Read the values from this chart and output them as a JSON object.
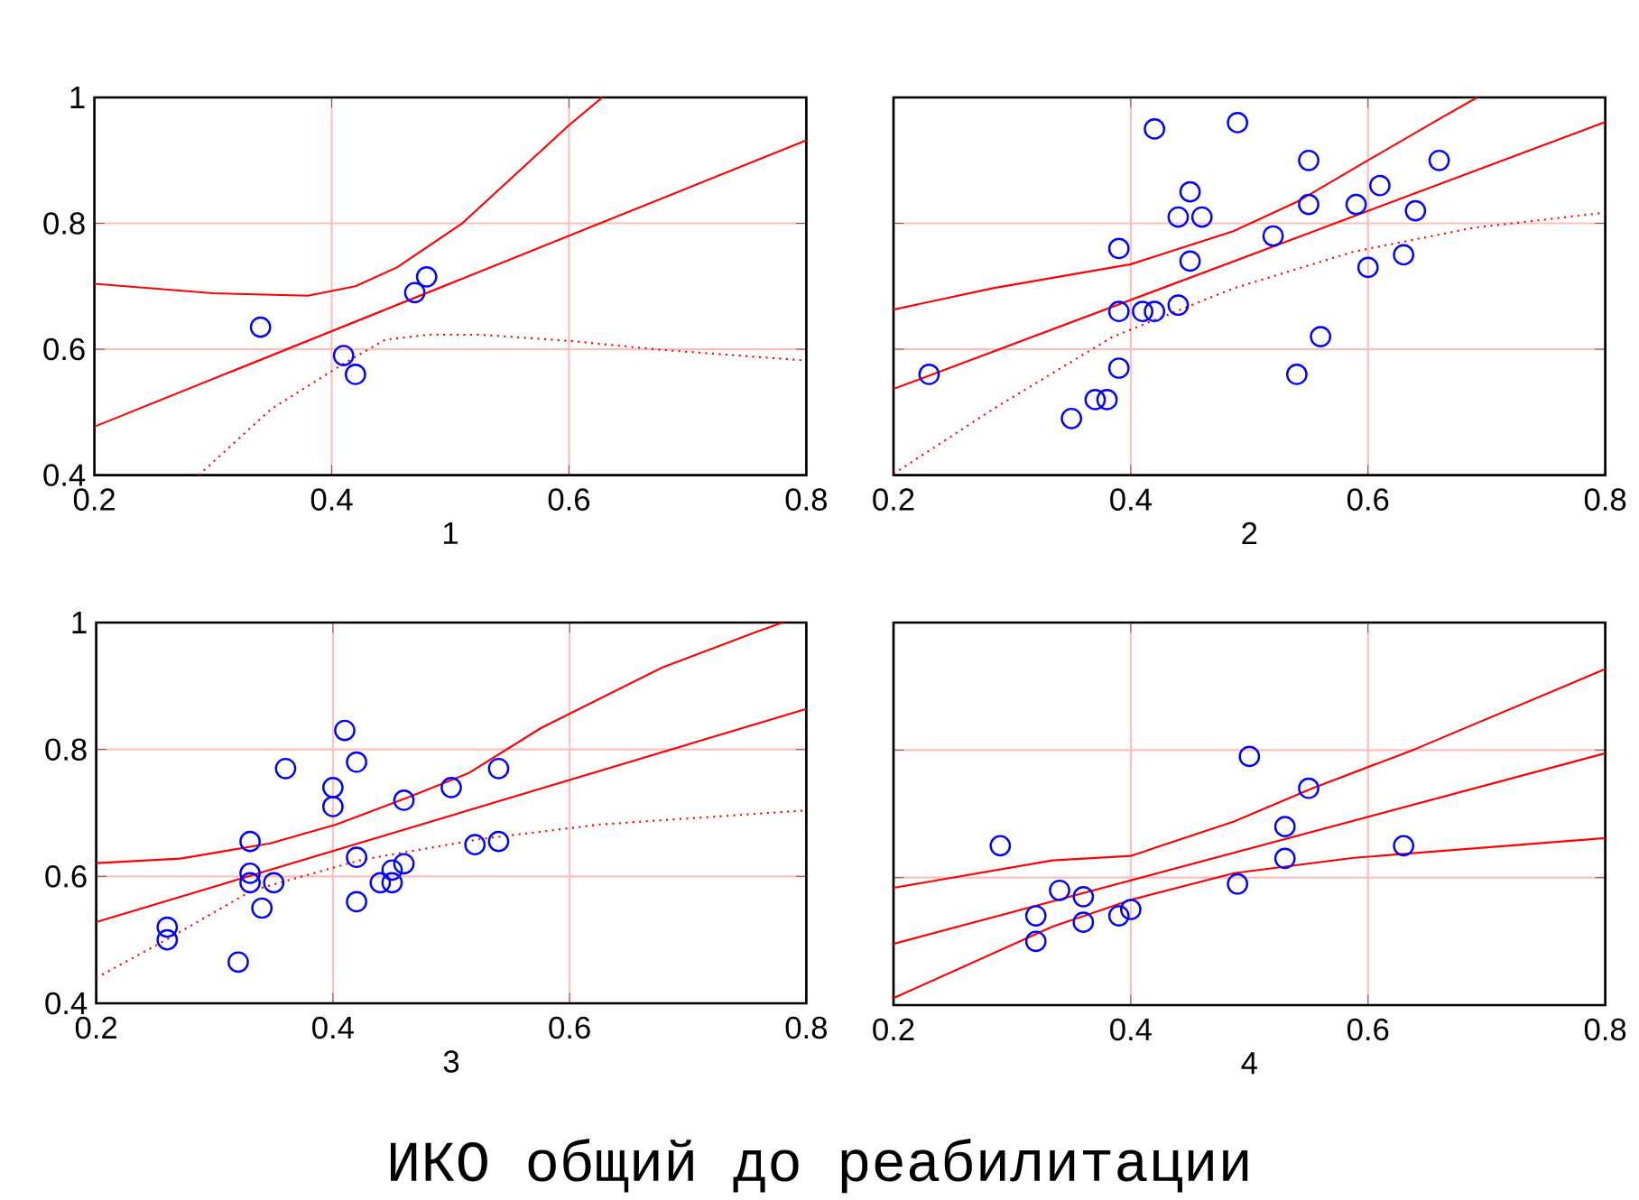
{
  "chart_data": [
    {
      "type": "scatter",
      "xlabel": "1",
      "xlim": [
        0.2,
        0.8
      ],
      "ylim": [
        0.4,
        1
      ],
      "xticks": [
        0.2,
        0.4,
        0.6,
        0.8
      ],
      "yticks": [
        0.4,
        0.6,
        0.8,
        1
      ],
      "grid": true,
      "series": [
        {
          "type": "scatter",
          "color": "#0000ff",
          "marker": "circle",
          "x": [
            0.34,
            0.41,
            0.42,
            0.47,
            0.48
          ],
          "values": [
            0.635,
            0.59,
            0.56,
            0.69,
            0.715
          ]
        },
        {
          "type": "line",
          "color": "#ff0000",
          "line_style": "solid",
          "x": [
            0.2,
            0.8
          ],
          "values": [
            0.477,
            0.932
          ]
        },
        {
          "type": "line",
          "color": "#ff0000",
          "line_style": "solid",
          "x": [
            0.2,
            0.3,
            0.38,
            0.42,
            0.455,
            0.51,
            0.6,
            0.628
          ],
          "values": [
            0.704,
            0.689,
            0.685,
            0.7,
            0.73,
            0.8,
            0.956,
            1
          ]
        },
        {
          "type": "line",
          "color": "#ff0000",
          "line_style": "dotted",
          "x": [
            0.288,
            0.349,
            0.41,
            0.445,
            0.481,
            0.526,
            0.602,
            0.678,
            0.8
          ],
          "values": [
            0.4,
            0.505,
            0.577,
            0.615,
            0.623,
            0.623,
            0.613,
            0.599,
            0.582
          ]
        }
      ]
    },
    {
      "type": "scatter",
      "xlabel": "2",
      "xlim": [
        0.2,
        0.8
      ],
      "ylim": [
        0.4,
        1
      ],
      "xticks": [
        0.2,
        0.4,
        0.6,
        0.8
      ],
      "yticks": [
        0.4,
        0.6,
        0.8,
        1
      ],
      "grid": true,
      "tick_labels": "x",
      "series": [
        {
          "type": "scatter",
          "color": "#0000ff",
          "marker": "circle",
          "x": [
            0.23,
            0.35,
            0.37,
            0.38,
            0.39,
            0.39,
            0.39,
            0.41,
            0.42,
            0.42,
            0.44,
            0.44,
            0.45,
            0.45,
            0.46,
            0.49,
            0.52,
            0.54,
            0.55,
            0.55,
            0.56,
            0.59,
            0.6,
            0.61,
            0.63,
            0.64,
            0.66
          ],
          "values": [
            0.56,
            0.49,
            0.52,
            0.52,
            0.57,
            0.66,
            0.76,
            0.66,
            0.66,
            0.95,
            0.67,
            0.81,
            0.85,
            0.74,
            0.81,
            0.96,
            0.78,
            0.56,
            0.9,
            0.83,
            0.62,
            0.83,
            0.73,
            0.86,
            0.75,
            0.82,
            0.9
          ]
        },
        {
          "type": "line",
          "color": "#ff0000",
          "line_style": "solid",
          "x": [
            0.2,
            0.8
          ],
          "values": [
            0.537,
            0.961
          ]
        },
        {
          "type": "line",
          "color": "#ff0000",
          "line_style": "solid",
          "x": [
            0.2,
            0.284,
            0.4,
            0.487,
            0.542,
            0.598,
            0.664,
            0.692
          ],
          "values": [
            0.663,
            0.697,
            0.735,
            0.788,
            0.836,
            0.898,
            0.97,
            1
          ]
        },
        {
          "type": "line",
          "color": "#ff0000",
          "line_style": "dotted",
          "x": [
            0.2,
            0.284,
            0.385,
            0.487,
            0.588,
            0.689,
            0.8
          ],
          "values": [
            0.402,
            0.505,
            0.62,
            0.697,
            0.755,
            0.793,
            0.817
          ]
        }
      ]
    },
    {
      "type": "scatter",
      "xlabel": "3",
      "xlim": [
        0.2,
        0.8
      ],
      "ylim": [
        0.4,
        1
      ],
      "xticks": [
        0.2,
        0.4,
        0.6,
        0.8
      ],
      "yticks": [
        0.4,
        0.6,
        0.8,
        1
      ],
      "grid": true,
      "series": [
        {
          "type": "scatter",
          "color": "#0000ff",
          "marker": "circle",
          "x": [
            0.26,
            0.26,
            0.32,
            0.33,
            0.33,
            0.33,
            0.34,
            0.35,
            0.36,
            0.4,
            0.4,
            0.41,
            0.42,
            0.42,
            0.42,
            0.44,
            0.45,
            0.45,
            0.46,
            0.46,
            0.5,
            0.52,
            0.54,
            0.54
          ],
          "values": [
            0.52,
            0.5,
            0.465,
            0.655,
            0.605,
            0.59,
            0.55,
            0.59,
            0.77,
            0.74,
            0.71,
            0.83,
            0.78,
            0.63,
            0.56,
            0.59,
            0.61,
            0.59,
            0.62,
            0.72,
            0.74,
            0.65,
            0.77,
            0.655
          ]
        },
        {
          "type": "line",
          "color": "#ff0000",
          "line_style": "solid",
          "x": [
            0.2,
            0.8
          ],
          "values": [
            0.528,
            0.864
          ]
        },
        {
          "type": "line",
          "color": "#ff0000",
          "line_style": "solid",
          "x": [
            0.2,
            0.271,
            0.347,
            0.403,
            0.464,
            0.515,
            0.576,
            0.678,
            0.759,
            0.78
          ],
          "values": [
            0.621,
            0.628,
            0.652,
            0.682,
            0.725,
            0.763,
            0.834,
            0.929,
            0.986,
            1
          ]
        },
        {
          "type": "line",
          "color": "#ff0000",
          "line_style": "dotted",
          "x": [
            0.2,
            0.261,
            0.332,
            0.424,
            0.525,
            0.627,
            0.8
          ],
          "values": [
            0.44,
            0.502,
            0.578,
            0.626,
            0.659,
            0.682,
            0.704
          ]
        }
      ]
    },
    {
      "type": "scatter",
      "xlabel": "4",
      "xlim": [
        0.2,
        0.8
      ],
      "ylim": [
        0.4,
        1
      ],
      "xticks": [
        0.2,
        0.4,
        0.6,
        0.8
      ],
      "yticks": [
        0.4,
        0.6,
        0.8,
        1
      ],
      "grid": true,
      "tick_labels": "x",
      "annotations": [
        "ИКО общий до реабилитации"
      ],
      "series": [
        {
          "type": "scatter",
          "color": "#0000ff",
          "marker": "circle",
          "x": [
            0.29,
            0.32,
            0.32,
            0.34,
            0.36,
            0.36,
            0.39,
            0.4,
            0.49,
            0.5,
            0.53,
            0.53,
            0.55,
            0.63
          ],
          "values": [
            0.65,
            0.54,
            0.5,
            0.58,
            0.57,
            0.53,
            0.54,
            0.55,
            0.59,
            0.79,
            0.68,
            0.63,
            0.74,
            0.65
          ]
        },
        {
          "type": "line",
          "color": "#ff0000",
          "line_style": "solid",
          "x": [
            0.2,
            0.8
          ],
          "values": [
            0.496,
            0.795
          ]
        },
        {
          "type": "line",
          "color": "#ff0000",
          "line_style": "solid",
          "x": [
            0.2,
            0.334,
            0.4,
            0.487,
            0.553,
            0.639,
            0.8
          ],
          "values": [
            0.584,
            0.627,
            0.634,
            0.688,
            0.74,
            0.801,
            0.927
          ]
        },
        {
          "type": "line",
          "color": "#ff0000",
          "line_style": "solid",
          "x": [
            0.2,
            0.334,
            0.4,
            0.487,
            0.588,
            0.8
          ],
          "values": [
            0.411,
            0.523,
            0.565,
            0.607,
            0.631,
            0.662
          ]
        }
      ]
    }
  ]
}
